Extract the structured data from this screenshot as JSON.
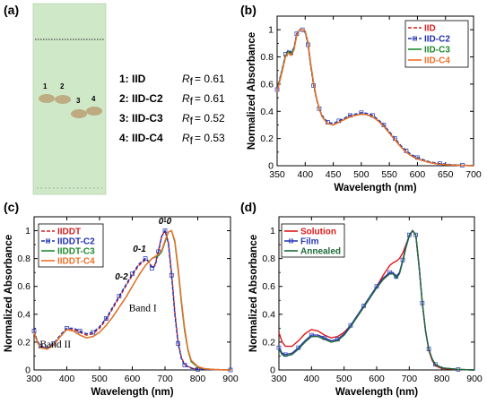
{
  "panels": {
    "a": {
      "label": "(a)",
      "entries": [
        {
          "text": "1:  IID",
          "rf_symbol": "R",
          "rf_sub": "f",
          "rf_value": "= 0.61"
        },
        {
          "text": "2:  IID-C2",
          "rf_symbol": "R",
          "rf_sub": "f",
          "rf_value": "= 0.61"
        },
        {
          "text": "3:  IID-C3",
          "rf_symbol": "R",
          "rf_sub": "f",
          "rf_value": "= 0.52"
        },
        {
          "text": "4:  IID-C4",
          "rf_symbol": "R",
          "rf_sub": "f",
          "rf_value": "= 0.53"
        }
      ],
      "spot_numbers": [
        "1",
        "2",
        "3",
        "4"
      ],
      "plate_color": "#cfe8c8"
    },
    "b": {
      "label": "(b)"
    },
    "c": {
      "label": "(c)"
    },
    "d": {
      "label": "(d)"
    }
  },
  "chart_data": [
    {
      "id": "b",
      "type": "line",
      "xlabel": "Wavelength (nm)",
      "ylabel": "Normalized Absorbance",
      "xlim": [
        350,
        700
      ],
      "ylim": [
        0,
        1.1
      ],
      "xticks": [
        350,
        400,
        450,
        500,
        550,
        600,
        650,
        700
      ],
      "yticks": [
        0,
        0.2,
        0.4,
        0.6,
        0.8,
        1
      ],
      "legend_position": "top-right",
      "series": [
        {
          "name": "IID",
          "color": "#d42020",
          "dash": "4,2",
          "marker": "none",
          "x": [
            350,
            360,
            365,
            370,
            375,
            380,
            385,
            390,
            395,
            400,
            405,
            410,
            415,
            420,
            425,
            430,
            440,
            450,
            460,
            470,
            480,
            490,
            500,
            510,
            520,
            530,
            540,
            550,
            560,
            570,
            580,
            590,
            600,
            620,
            640,
            660,
            680,
            700
          ],
          "y": [
            0.55,
            0.72,
            0.81,
            0.84,
            0.82,
            0.86,
            0.97,
            1.0,
            1.0,
            0.99,
            0.9,
            0.74,
            0.6,
            0.5,
            0.42,
            0.36,
            0.31,
            0.3,
            0.32,
            0.34,
            0.36,
            0.37,
            0.38,
            0.375,
            0.36,
            0.33,
            0.29,
            0.24,
            0.19,
            0.14,
            0.1,
            0.07,
            0.05,
            0.025,
            0.01,
            0.005,
            0.002,
            0.0
          ]
        },
        {
          "name": "IID-C2",
          "color": "#2030b0",
          "dash": "4,2",
          "marker": "square",
          "x": [
            350,
            360,
            365,
            370,
            375,
            380,
            385,
            390,
            395,
            400,
            405,
            410,
            415,
            420,
            425,
            430,
            440,
            450,
            460,
            470,
            480,
            490,
            500,
            510,
            520,
            530,
            540,
            550,
            560,
            570,
            580,
            590,
            600,
            620,
            640,
            660,
            680,
            700
          ],
          "y": [
            0.56,
            0.73,
            0.82,
            0.85,
            0.83,
            0.87,
            0.97,
            1.0,
            1.0,
            0.98,
            0.89,
            0.73,
            0.59,
            0.49,
            0.42,
            0.37,
            0.32,
            0.31,
            0.33,
            0.35,
            0.37,
            0.38,
            0.39,
            0.385,
            0.37,
            0.34,
            0.3,
            0.25,
            0.2,
            0.15,
            0.11,
            0.08,
            0.06,
            0.03,
            0.015,
            0.008,
            0.004,
            0.002
          ]
        },
        {
          "name": "IID-C3",
          "color": "#1e8a2e",
          "dash": "",
          "marker": "none",
          "x": [
            350,
            360,
            365,
            370,
            375,
            380,
            385,
            390,
            395,
            400,
            405,
            410,
            415,
            420,
            425,
            430,
            440,
            450,
            460,
            470,
            480,
            490,
            500,
            510,
            520,
            530,
            540,
            550,
            560,
            570,
            580,
            590,
            600,
            620,
            640,
            660,
            680,
            700
          ],
          "y": [
            0.55,
            0.72,
            0.81,
            0.84,
            0.82,
            0.86,
            0.96,
            1.0,
            1.0,
            0.99,
            0.9,
            0.74,
            0.6,
            0.5,
            0.42,
            0.36,
            0.31,
            0.3,
            0.32,
            0.34,
            0.36,
            0.37,
            0.38,
            0.375,
            0.36,
            0.33,
            0.29,
            0.24,
            0.19,
            0.14,
            0.1,
            0.07,
            0.05,
            0.025,
            0.01,
            0.005,
            0.002,
            0.0
          ]
        },
        {
          "name": "IID-C4",
          "color": "#f07028",
          "dash": "",
          "marker": "none",
          "x": [
            350,
            360,
            365,
            370,
            375,
            380,
            385,
            390,
            395,
            400,
            405,
            410,
            415,
            420,
            425,
            430,
            440,
            450,
            460,
            470,
            480,
            490,
            500,
            510,
            520,
            530,
            540,
            550,
            560,
            570,
            580,
            590,
            600,
            620,
            640,
            660,
            680,
            700
          ],
          "y": [
            0.54,
            0.71,
            0.8,
            0.83,
            0.81,
            0.85,
            0.96,
            1.0,
            1.0,
            0.99,
            0.91,
            0.75,
            0.61,
            0.5,
            0.42,
            0.36,
            0.31,
            0.3,
            0.32,
            0.34,
            0.36,
            0.37,
            0.38,
            0.375,
            0.36,
            0.33,
            0.29,
            0.24,
            0.19,
            0.14,
            0.1,
            0.07,
            0.05,
            0.025,
            0.01,
            0.005,
            0.002,
            0.0
          ]
        }
      ]
    },
    {
      "id": "c",
      "type": "line",
      "xlabel": "Wavelength (nm)",
      "ylabel": "Normalized Absorbance",
      "xlim": [
        300,
        900
      ],
      "ylim": [
        0,
        1.1
      ],
      "xticks": [
        300,
        400,
        500,
        600,
        700,
        800,
        900
      ],
      "yticks": [
        0,
        0.2,
        0.4,
        0.6,
        0.8,
        1
      ],
      "legend_position": "top-left",
      "annotations": [
        {
          "text": "0-0",
          "x": 700,
          "y": 1.05,
          "style": "italic"
        },
        {
          "text": "0-1",
          "x": 622,
          "y": 0.85,
          "style": "italic"
        },
        {
          "text": "0-2",
          "x": 567,
          "y": 0.65,
          "style": "italic"
        },
        {
          "text": "Band I",
          "x": 632,
          "y": 0.42,
          "style": "serif"
        },
        {
          "text": "Band II",
          "x": 365,
          "y": 0.16,
          "style": "serif"
        }
      ],
      "series": [
        {
          "name": "IIDDT",
          "color": "#d42020",
          "dash": "4,2",
          "marker": "none",
          "x": [
            300,
            310,
            320,
            340,
            360,
            380,
            400,
            420,
            440,
            460,
            480,
            500,
            520,
            540,
            560,
            580,
            600,
            620,
            640,
            650,
            660,
            670,
            680,
            690,
            700,
            710,
            720,
            730,
            740,
            750,
            760,
            780,
            800,
            850,
            900
          ],
          "y": [
            0.27,
            0.2,
            0.16,
            0.15,
            0.18,
            0.24,
            0.29,
            0.29,
            0.27,
            0.25,
            0.26,
            0.3,
            0.36,
            0.44,
            0.52,
            0.6,
            0.68,
            0.75,
            0.79,
            0.78,
            0.74,
            0.76,
            0.86,
            0.96,
            1.0,
            0.92,
            0.7,
            0.42,
            0.2,
            0.09,
            0.04,
            0.015,
            0.005,
            0.002,
            0.0
          ]
        },
        {
          "name": "IIDDT-C2",
          "color": "#2030b0",
          "dash": "4,2",
          "marker": "square",
          "x": [
            300,
            310,
            320,
            340,
            360,
            380,
            400,
            420,
            440,
            460,
            480,
            500,
            520,
            540,
            560,
            580,
            600,
            620,
            640,
            650,
            660,
            670,
            680,
            690,
            700,
            710,
            720,
            730,
            740,
            750,
            760,
            780,
            800,
            850,
            900
          ],
          "y": [
            0.28,
            0.21,
            0.17,
            0.16,
            0.19,
            0.25,
            0.3,
            0.3,
            0.28,
            0.26,
            0.27,
            0.31,
            0.37,
            0.45,
            0.53,
            0.61,
            0.69,
            0.76,
            0.8,
            0.78,
            0.73,
            0.75,
            0.85,
            0.96,
            1.0,
            0.91,
            0.68,
            0.4,
            0.19,
            0.08,
            0.035,
            0.012,
            0.004,
            0.001,
            0.0
          ]
        },
        {
          "name": "IIDDT-C3",
          "color": "#1e8a2e",
          "dash": "",
          "marker": "none",
          "x": [
            300,
            310,
            320,
            340,
            360,
            380,
            400,
            420,
            440,
            460,
            480,
            500,
            520,
            540,
            560,
            580,
            600,
            620,
            640,
            660,
            680,
            690,
            700,
            710,
            720,
            730,
            740,
            750,
            760,
            770,
            780,
            800,
            820,
            850,
            900
          ],
          "y": [
            0.27,
            0.2,
            0.16,
            0.15,
            0.18,
            0.24,
            0.29,
            0.28,
            0.25,
            0.23,
            0.24,
            0.27,
            0.32,
            0.38,
            0.45,
            0.52,
            0.6,
            0.68,
            0.75,
            0.8,
            0.82,
            0.85,
            0.92,
            0.99,
            1.0,
            0.92,
            0.72,
            0.48,
            0.28,
            0.14,
            0.06,
            0.02,
            0.008,
            0.003,
            0.0
          ]
        },
        {
          "name": "IIDDT-C4",
          "color": "#f07028",
          "dash": "",
          "marker": "none",
          "x": [
            300,
            310,
            320,
            340,
            360,
            380,
            400,
            420,
            440,
            460,
            480,
            500,
            520,
            540,
            560,
            580,
            600,
            620,
            640,
            660,
            680,
            690,
            700,
            710,
            720,
            730,
            740,
            750,
            760,
            770,
            780,
            800,
            820,
            850,
            900
          ],
          "y": [
            0.27,
            0.2,
            0.16,
            0.15,
            0.18,
            0.24,
            0.29,
            0.28,
            0.25,
            0.23,
            0.24,
            0.27,
            0.32,
            0.38,
            0.45,
            0.52,
            0.6,
            0.68,
            0.75,
            0.8,
            0.83,
            0.86,
            0.93,
            0.99,
            1.0,
            0.93,
            0.74,
            0.5,
            0.3,
            0.15,
            0.07,
            0.025,
            0.01,
            0.003,
            0.0
          ]
        }
      ]
    },
    {
      "id": "d",
      "type": "line",
      "xlabel": "Wavelength (nm)",
      "ylabel": "Normalized Absorbance",
      "xlim": [
        300,
        900
      ],
      "ylim": [
        0,
        1.1
      ],
      "xticks": [
        300,
        400,
        500,
        600,
        700,
        800,
        900
      ],
      "yticks": [
        0,
        0.2,
        0.4,
        0.6,
        0.8,
        1
      ],
      "legend_position": "top-left",
      "series": [
        {
          "name": "Solution",
          "color": "#e01818",
          "dash": "",
          "marker": "none",
          "x": [
            300,
            310,
            320,
            340,
            360,
            380,
            400,
            420,
            440,
            460,
            480,
            500,
            520,
            540,
            560,
            580,
            600,
            620,
            640,
            650,
            660,
            670,
            680,
            690,
            700,
            710,
            720,
            730,
            740,
            750,
            760,
            770,
            780,
            800,
            850,
            900
          ],
          "y": [
            0.27,
            0.2,
            0.17,
            0.17,
            0.21,
            0.26,
            0.29,
            0.28,
            0.25,
            0.23,
            0.24,
            0.27,
            0.32,
            0.38,
            0.45,
            0.52,
            0.6,
            0.68,
            0.75,
            0.77,
            0.78,
            0.8,
            0.84,
            0.9,
            0.96,
            1.0,
            0.97,
            0.75,
            0.48,
            0.28,
            0.14,
            0.07,
            0.03,
            0.01,
            0.003,
            0.0
          ]
        },
        {
          "name": "Film",
          "color": "#2a3ab8",
          "dash": "",
          "marker": "square",
          "x": [
            300,
            310,
            320,
            340,
            360,
            380,
            400,
            420,
            440,
            460,
            480,
            500,
            520,
            540,
            560,
            580,
            600,
            620,
            640,
            650,
            660,
            670,
            680,
            690,
            700,
            710,
            720,
            730,
            740,
            750,
            760,
            770,
            780,
            800,
            850,
            900
          ],
          "y": [
            0.16,
            0.12,
            0.11,
            0.12,
            0.16,
            0.21,
            0.25,
            0.25,
            0.23,
            0.21,
            0.22,
            0.26,
            0.32,
            0.39,
            0.46,
            0.53,
            0.6,
            0.66,
            0.7,
            0.7,
            0.67,
            0.7,
            0.79,
            0.89,
            0.97,
            1.0,
            0.97,
            0.75,
            0.48,
            0.28,
            0.15,
            0.08,
            0.04,
            0.015,
            0.004,
            0.0
          ]
        },
        {
          "name": "Annealed",
          "color": "#1e6a3a",
          "dash": "",
          "marker": "none",
          "x": [
            300,
            310,
            320,
            340,
            360,
            380,
            400,
            420,
            440,
            460,
            480,
            500,
            520,
            540,
            560,
            580,
            600,
            620,
            640,
            650,
            660,
            670,
            680,
            690,
            700,
            710,
            720,
            730,
            740,
            750,
            760,
            770,
            780,
            800,
            850,
            900
          ],
          "y": [
            0.15,
            0.11,
            0.1,
            0.11,
            0.15,
            0.2,
            0.24,
            0.24,
            0.22,
            0.2,
            0.21,
            0.25,
            0.31,
            0.38,
            0.45,
            0.52,
            0.59,
            0.65,
            0.69,
            0.69,
            0.66,
            0.69,
            0.78,
            0.88,
            0.96,
            1.0,
            0.97,
            0.75,
            0.48,
            0.28,
            0.15,
            0.08,
            0.04,
            0.015,
            0.004,
            0.0
          ]
        }
      ]
    }
  ]
}
